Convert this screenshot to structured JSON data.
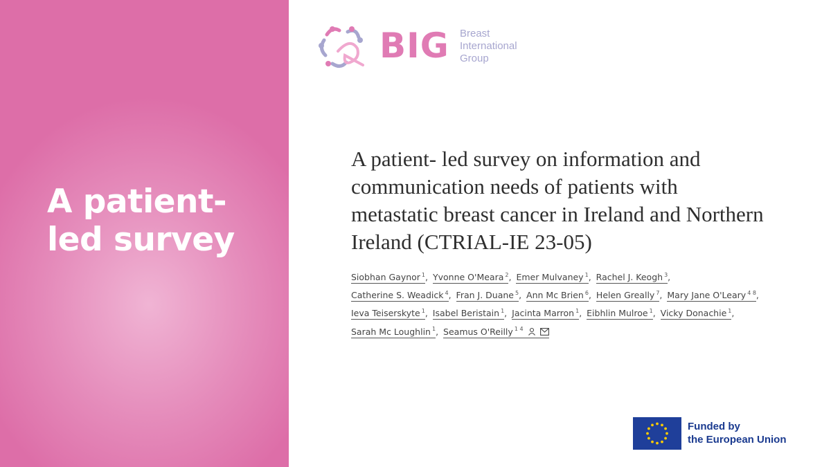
{
  "headline": "A patient-led survey",
  "logo": {
    "acronym": "BIG",
    "line1": "Breast",
    "line2": "International",
    "line3": "Group"
  },
  "paper": {
    "title": "A patient- led survey on information and communication needs of patients with metastatic breast cancer in Ireland and Northern Ireland (CTRIAL-IE 23-05)"
  },
  "authors": [
    {
      "name": "Siobhan Gaynor",
      "aff": "1"
    },
    {
      "name": "Yvonne O'Meara",
      "aff": "2"
    },
    {
      "name": "Emer Mulvaney",
      "aff": "1"
    },
    {
      "name": "Rachel J. Keogh",
      "aff": "3"
    },
    {
      "name": "Catherine S. Weadick",
      "aff": "4"
    },
    {
      "name": "Fran J. Duane",
      "aff": "5"
    },
    {
      "name": "Ann Mc Brien",
      "aff": "6"
    },
    {
      "name": "Helen Greally",
      "aff": "7"
    },
    {
      "name": "Mary Jane O'Leary",
      "aff": "4 8"
    },
    {
      "name": "Ieva Teiserskyte",
      "aff": "1"
    },
    {
      "name": "Isabel Beristain",
      "aff": "1"
    },
    {
      "name": "Jacinta Marron",
      "aff": "1"
    },
    {
      "name": "Eibhlin Mulroe",
      "aff": "1"
    },
    {
      "name": "Vicky Donachie",
      "aff": "1"
    },
    {
      "name": "Sarah Mc Loughlin",
      "aff": "1"
    },
    {
      "name": "Seamus O'Reilly",
      "aff": "1 4"
    }
  ],
  "funding": {
    "line1": "Funded by",
    "line2": "the European Union"
  },
  "colors": {
    "pink_panel": "#e58cbb",
    "logo_pink": "#e07bb4",
    "logo_lavender": "#a7a6cf",
    "eu_blue": "#1a3a8f",
    "eu_star": "#ffcc00"
  },
  "icons": [
    "person-icon",
    "envelope-icon",
    "eu-flag-icon",
    "big-logo-icon"
  ]
}
